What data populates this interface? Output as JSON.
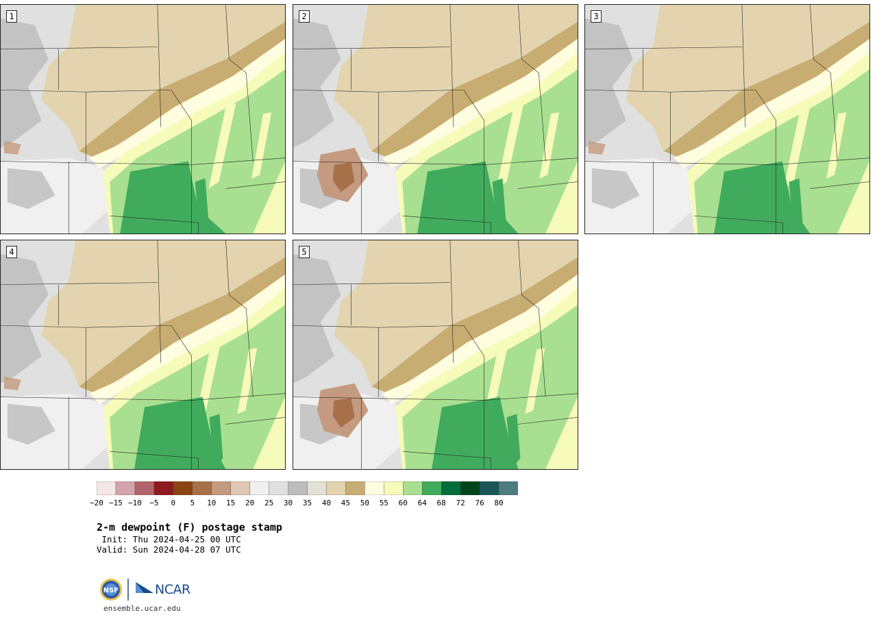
{
  "panels": [
    {
      "label": "1"
    },
    {
      "label": "2"
    },
    {
      "label": "3"
    },
    {
      "label": "4"
    },
    {
      "label": "5"
    }
  ],
  "colorbar": {
    "colors": [
      "#f5e6e8",
      "#d4a3ab",
      "#b3636b",
      "#8c1a1f",
      "#8b4513",
      "#a87048",
      "#c49a80",
      "#e0c6b4",
      "#f0f0f0",
      "#e0e0e0",
      "#bdbdbd",
      "#e2e1d5",
      "#e3d4af",
      "#c8ad72",
      "#fefde0",
      "#f6fbba",
      "#a9df90",
      "#41ab5d",
      "#006d3a",
      "#00441b",
      "#1a5658",
      "#4e7b80"
    ],
    "ticks": [
      "−20",
      "−15",
      "−10",
      "−5",
      "0",
      "5",
      "10",
      "15",
      "20",
      "25",
      "30",
      "35",
      "40",
      "45",
      "50",
      "55",
      "60",
      "64",
      "68",
      "72",
      "76",
      "80"
    ]
  },
  "title": "2-m dewpoint (F) postage stamp",
  "init_label": " Init: Thu 2024-04-25 00 UTC",
  "valid_label": "Valid: Sun 2024-04-28 07 UTC",
  "logo": {
    "nsf_text": "NSF",
    "ncar_text": "NCAR"
  },
  "url": "ensemble.ucar.edu"
}
